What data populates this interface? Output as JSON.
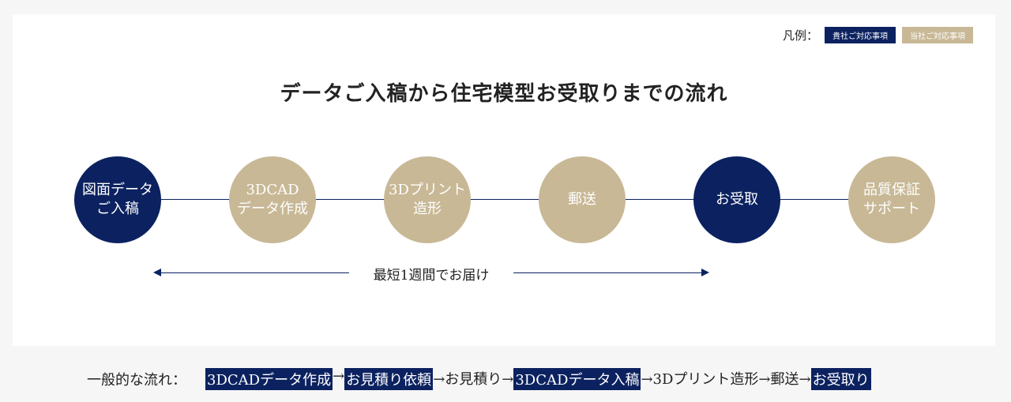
{
  "legend": {
    "label": "凡例：",
    "client": "貴社ご対応事項",
    "company": "当社ご対応事項"
  },
  "title": "データご入稿から住宅模型お受取りまでの流れ",
  "colors": {
    "client": "#0c2260",
    "company": "#c8b896"
  },
  "steps": [
    {
      "label": "図面データ\nご入稿",
      "owner": "client"
    },
    {
      "label": "3DCAD\nデータ作成",
      "owner": "company"
    },
    {
      "label": "3Dプリント\n造形",
      "owner": "company"
    },
    {
      "label": "郵送",
      "owner": "company"
    },
    {
      "label": "お受取",
      "owner": "client"
    },
    {
      "label": "品質保証\nサポート",
      "owner": "company"
    }
  ],
  "duration": "最短1週間でお届け",
  "general_flow": {
    "label": "一般的な流れ：",
    "items": [
      {
        "text": "3DCADデータ作成",
        "highlight": true
      },
      {
        "text": "→",
        "highlight": false
      },
      {
        "text": "お見積り依頼",
        "highlight": true
      },
      {
        "text": "→お見積り→",
        "highlight": false
      },
      {
        "text": "3DCADデータ入稿",
        "highlight": true
      },
      {
        "text": "→3Dプリント造形→郵送→",
        "highlight": false
      },
      {
        "text": "お受取り",
        "highlight": true
      }
    ]
  }
}
